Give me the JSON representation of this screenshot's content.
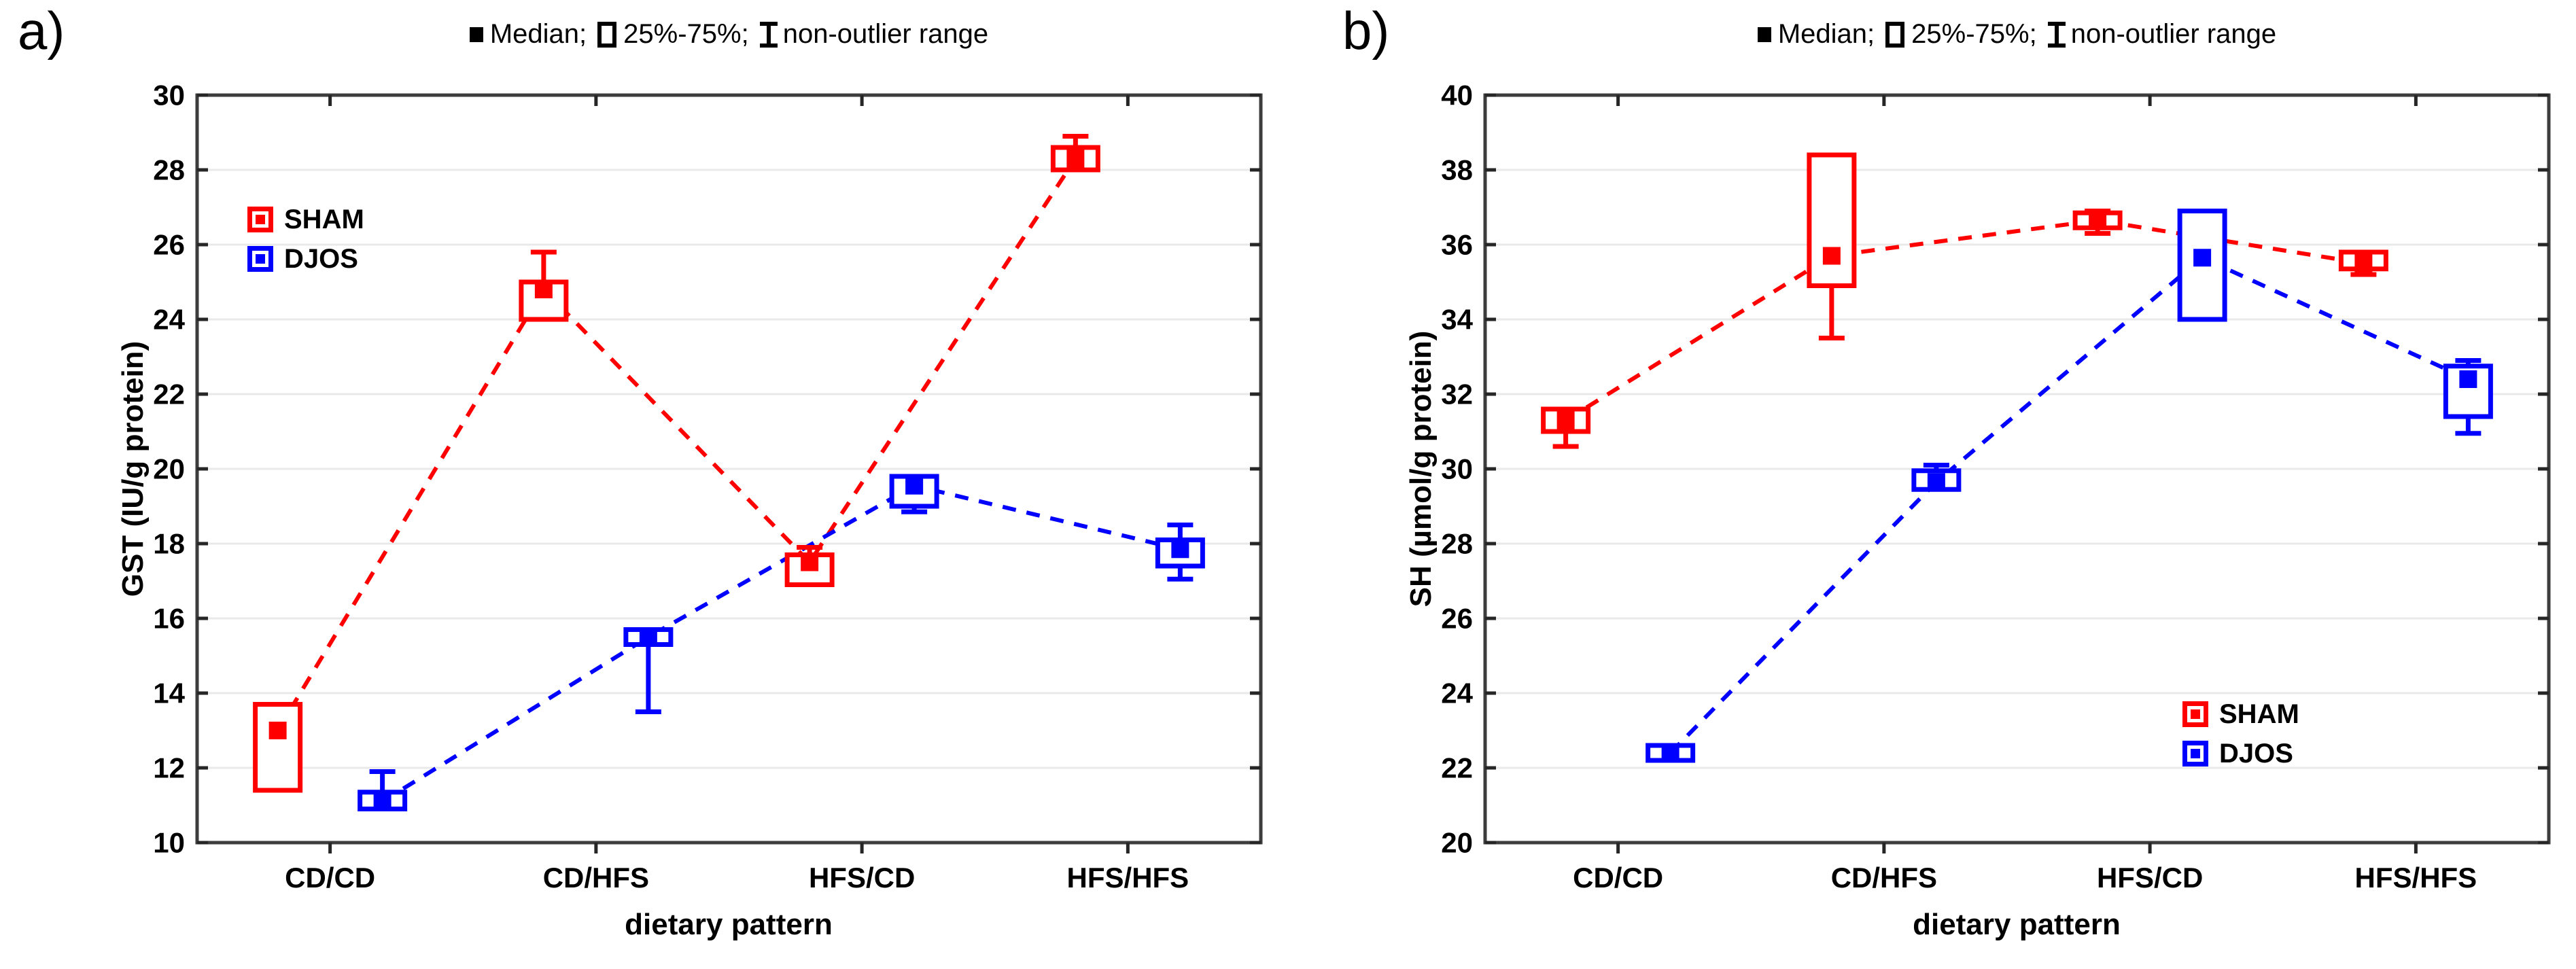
{
  "stats_legend": {
    "median_label": "Median;",
    "box_label": "25%-75%;",
    "whisker_label": "non-outlier range"
  },
  "colors": {
    "sham": "#ff0000",
    "djos": "#0000ff",
    "frame": "#3d3d3d",
    "gridline": "#e9e9e9",
    "tick": "#262626",
    "text": "#000000"
  },
  "chart_data": [
    {
      "type": "box",
      "panel_label": "a)",
      "xlabel": "dietary pattern",
      "ylabel": "GST (IU/g protein)",
      "ylim": [
        10,
        30
      ],
      "ytick_step": 2,
      "yticks": [
        10,
        12,
        14,
        16,
        18,
        20,
        22,
        24,
        26,
        28,
        30
      ],
      "categories": [
        "CD/CD",
        "CD/HFS",
        "HFS/CD",
        "HFS/HFS"
      ],
      "grid": "horizontal",
      "legend_position": "upper-left",
      "series": [
        {
          "name": "SHAM",
          "color": "#ff0000",
          "boxes": [
            {
              "median": 13.0,
              "q1": 11.4,
              "q3": 13.7,
              "whisker_low": null,
              "whisker_high": null
            },
            {
              "median": 24.8,
              "q1": 24.0,
              "q3": 25.0,
              "whisker_low": null,
              "whisker_high": 25.8
            },
            {
              "median": 17.5,
              "q1": 16.9,
              "q3": 17.7,
              "whisker_low": null,
              "whisker_high": 17.9
            },
            {
              "median": 28.3,
              "q1": 28.0,
              "q3": 28.6,
              "whisker_low": null,
              "whisker_high": 28.9
            }
          ]
        },
        {
          "name": "DJOS",
          "color": "#0000ff",
          "boxes": [
            {
              "median": 11.1,
              "q1": 10.9,
              "q3": 11.35,
              "whisker_low": null,
              "whisker_high": 11.9
            },
            {
              "median": 15.5,
              "q1": 15.3,
              "q3": 15.7,
              "whisker_low": 13.5,
              "whisker_high": null
            },
            {
              "median": 19.55,
              "q1": 19.0,
              "q3": 19.8,
              "whisker_low": 18.85,
              "whisker_high": null
            },
            {
              "median": 17.85,
              "q1": 17.4,
              "q3": 18.1,
              "whisker_low": 17.05,
              "whisker_high": 18.5
            }
          ]
        }
      ]
    },
    {
      "type": "box",
      "panel_label": "b)",
      "xlabel": "dietary pattern",
      "ylabel": "SH (µmol/g protein)",
      "ylim": [
        20,
        40
      ],
      "ytick_step": 2,
      "yticks": [
        20,
        22,
        24,
        26,
        28,
        30,
        32,
        34,
        36,
        38,
        40
      ],
      "categories": [
        "CD/CD",
        "CD/HFS",
        "HFS/CD",
        "HFS/HFS"
      ],
      "grid": "horizontal",
      "legend_position": "lower-right",
      "series": [
        {
          "name": "SHAM",
          "color": "#ff0000",
          "boxes": [
            {
              "median": 31.3,
              "q1": 31.0,
              "q3": 31.6,
              "whisker_low": 30.6,
              "whisker_high": null
            },
            {
              "median": 35.7,
              "q1": 34.9,
              "q3": 38.4,
              "whisker_low": 33.5,
              "whisker_high": null
            },
            {
              "median": 36.65,
              "q1": 36.45,
              "q3": 36.85,
              "whisker_low": 36.3,
              "whisker_high": 36.9
            },
            {
              "median": 35.5,
              "q1": 35.35,
              "q3": 35.8,
              "whisker_low": 35.2,
              "whisker_high": null
            }
          ]
        },
        {
          "name": "DJOS",
          "color": "#0000ff",
          "boxes": [
            {
              "median": 22.4,
              "q1": 22.2,
              "q3": 22.6,
              "whisker_low": null,
              "whisker_high": null
            },
            {
              "median": 29.65,
              "q1": 29.45,
              "q3": 29.95,
              "whisker_low": null,
              "whisker_high": 30.1
            },
            {
              "median": 35.65,
              "q1": 34.0,
              "q3": 36.9,
              "whisker_low": null,
              "whisker_high": null
            },
            {
              "median": 32.4,
              "q1": 31.4,
              "q3": 32.75,
              "whisker_low": 30.95,
              "whisker_high": 32.9
            }
          ]
        }
      ]
    }
  ]
}
